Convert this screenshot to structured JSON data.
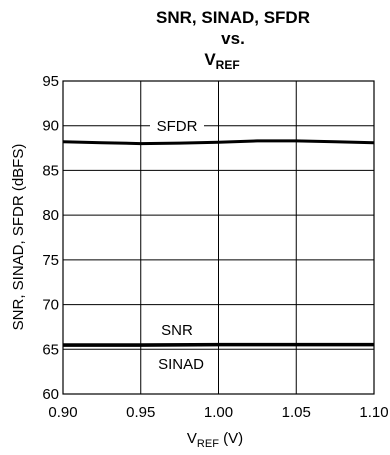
{
  "chart_data": {
    "type": "line",
    "title_line1": "SNR, SINAD, SFDR",
    "title_line2": "vs.",
    "title_line3_main": "V",
    "title_line3_sub": "REF",
    "xlabel_main": "V",
    "xlabel_sub": "REF",
    "xlabel_unit": " (V)",
    "ylabel": "SNR, SINAD, SFDR (dBFS)",
    "xlim": [
      0.9,
      1.1
    ],
    "ylim": [
      60,
      95
    ],
    "x_ticks": [
      "0.90",
      "0.95",
      "1.00",
      "1.05",
      "1.10"
    ],
    "x_tick_values": [
      0.9,
      0.95,
      1.0,
      1.05,
      1.1
    ],
    "y_ticks": [
      "60",
      "65",
      "70",
      "75",
      "80",
      "85",
      "90",
      "95"
    ],
    "y_tick_values": [
      60,
      65,
      70,
      75,
      80,
      85,
      90,
      95
    ],
    "grid": true,
    "line_color": "#000000",
    "series": [
      {
        "name": "SFDR",
        "x": [
          0.9,
          0.925,
          0.95,
          0.975,
          1.0,
          1.025,
          1.05,
          1.075,
          1.1
        ],
        "y": [
          88.2,
          88.1,
          88.0,
          88.05,
          88.15,
          88.3,
          88.3,
          88.2,
          88.1
        ]
      },
      {
        "name": "SNR",
        "x": [
          0.9,
          0.95,
          1.0,
          1.05,
          1.1
        ],
        "y": [
          65.5,
          65.5,
          65.55,
          65.55,
          65.55
        ]
      },
      {
        "name": "SINAD",
        "x": [
          0.9,
          0.95,
          1.0,
          1.05,
          1.1
        ],
        "y": [
          65.35,
          65.35,
          65.4,
          65.4,
          65.4
        ]
      }
    ]
  }
}
